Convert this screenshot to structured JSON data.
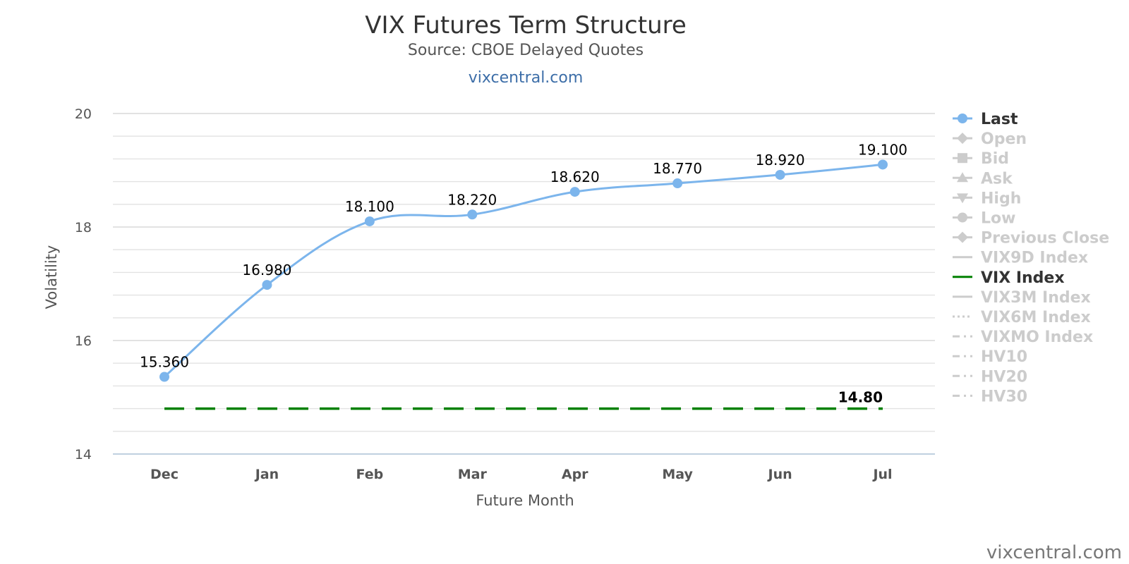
{
  "chart_data": {
    "type": "line",
    "title": "VIX Futures Term Structure",
    "subtitle": "Source: CBOE Delayed Quotes",
    "site_link": "vixcentral.com",
    "watermark": "vixcentral.com",
    "xlabel": "Future Month",
    "ylabel": "Volatility",
    "categories": [
      "Dec",
      "Jan",
      "Feb",
      "Mar",
      "Apr",
      "May",
      "Jun",
      "Jul"
    ],
    "ylim": [
      14,
      20
    ],
    "yticks": [
      "14",
      "16",
      "18",
      "20"
    ],
    "grid": true,
    "legend_position": "right",
    "series": [
      {
        "name": "Last",
        "values": [
          15.36,
          16.98,
          18.1,
          18.22,
          18.62,
          18.77,
          18.92,
          19.1
        ],
        "labels": [
          "15.360",
          "16.980",
          "18.100",
          "18.220",
          "18.620",
          "18.770",
          "18.920",
          "19.100"
        ],
        "color": "#7cb5ec"
      },
      {
        "name": "VIX Index",
        "values": [
          14.8,
          14.8,
          14.8,
          14.8,
          14.8,
          14.8,
          14.8,
          14.8
        ],
        "end_label": "14.80",
        "color": "#008000"
      }
    ],
    "legend": [
      {
        "name": "Last",
        "active": true,
        "symbol": "circle",
        "color": "#7cb5ec"
      },
      {
        "name": "Open",
        "active": false,
        "symbol": "diamond"
      },
      {
        "name": "Bid",
        "active": false,
        "symbol": "square"
      },
      {
        "name": "Ask",
        "active": false,
        "symbol": "triangle"
      },
      {
        "name": "High",
        "active": false,
        "symbol": "triangle-down"
      },
      {
        "name": "Low",
        "active": false,
        "symbol": "circle"
      },
      {
        "name": "Previous Close",
        "active": false,
        "symbol": "diamond"
      },
      {
        "name": "VIX9D Index",
        "active": false,
        "symbol": "solid"
      },
      {
        "name": "VIX Index",
        "active": true,
        "symbol": "solid",
        "color": "#008000"
      },
      {
        "name": "VIX3M Index",
        "active": false,
        "symbol": "solid"
      },
      {
        "name": "VIX6M Index",
        "active": false,
        "symbol": "dotted"
      },
      {
        "name": "VIXMO Index",
        "active": false,
        "symbol": "dashdot"
      },
      {
        "name": "HV10",
        "active": false,
        "symbol": "dashdot"
      },
      {
        "name": "HV20",
        "active": false,
        "symbol": "dashdot"
      },
      {
        "name": "HV30",
        "active": false,
        "symbol": "dashdot"
      }
    ]
  }
}
